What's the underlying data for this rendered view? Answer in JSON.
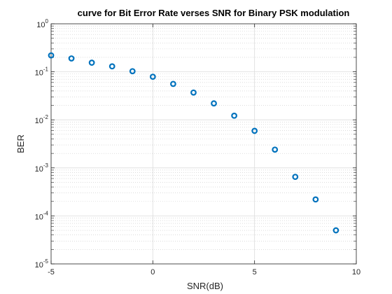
{
  "chart_data": {
    "type": "scatter",
    "title": "curve for Bit Error Rate verses  SNR for Binary PSK modulation",
    "xlabel": "SNR(dB)",
    "ylabel": "BER",
    "xlim": [
      -5,
      10
    ],
    "ylim": [
      1e-05,
      1
    ],
    "yscale": "log",
    "grid": true,
    "minor_grid": true,
    "x_ticks": [
      -5,
      0,
      5,
      10
    ],
    "x_tick_labels": [
      "-5",
      "0",
      "5",
      "10"
    ],
    "y_tick_exponents": [
      -5,
      -4,
      -3,
      -2,
      -1,
      0
    ],
    "y_tick_labels": [
      {
        "base": "10",
        "exp": "-5"
      },
      {
        "base": "10",
        "exp": "-4"
      },
      {
        "base": "10",
        "exp": "-3"
      },
      {
        "base": "10",
        "exp": "-2"
      },
      {
        "base": "10",
        "exp": "-1"
      },
      {
        "base": "10",
        "exp": "0"
      }
    ],
    "marker": "circle",
    "marker_color": "#0072BD",
    "series": [
      {
        "x": [
          -5,
          -4,
          -3,
          -2,
          -1,
          0,
          1,
          2,
          3,
          4,
          5,
          6,
          7,
          8,
          9
        ],
        "y": [
          0.22,
          0.19,
          0.155,
          0.13,
          0.103,
          0.079,
          0.056,
          0.037,
          0.022,
          0.0122,
          0.0059,
          0.0024,
          0.00065,
          0.00022,
          5e-05
        ]
      }
    ]
  }
}
